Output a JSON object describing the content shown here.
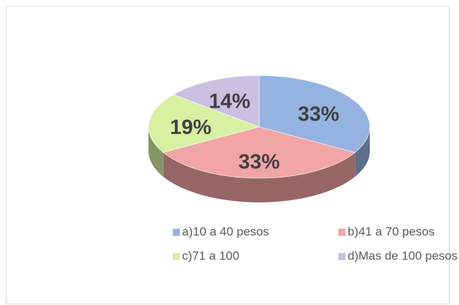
{
  "chart_data": {
    "type": "pie",
    "categories": [
      "a)10 a 40 pesos",
      "b)41 a 70 pesos",
      "c)71 a 100",
      "d)Mas de 100 pesos"
    ],
    "values": [
      33,
      33,
      19,
      14
    ],
    "value_labels": [
      "33%",
      "33%",
      "19%",
      "14%"
    ],
    "colors": [
      "#95b3e0",
      "#f2a5a5",
      "#d8f0a3",
      "#cbbfe2"
    ],
    "legend": "bottom"
  }
}
